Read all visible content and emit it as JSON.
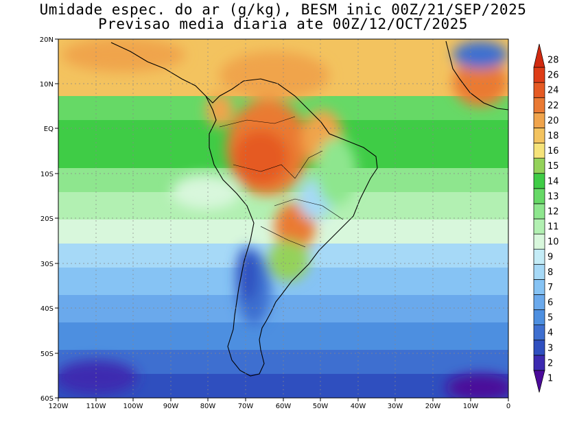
{
  "title_line1": "Umidade espec. do ar (g/kg), BESM inic 00Z/21/SEP/2025",
  "title_line2": "Previsao media diaria ate 00Z/12/OCT/2025",
  "lat_labels": [
    "20N",
    "10N",
    "EQ",
    "10S",
    "20S",
    "30S",
    "40S",
    "50S",
    "60S"
  ],
  "lon_labels": [
    "120W",
    "110W",
    "100W",
    "90W",
    "80W",
    "70W",
    "60W",
    "50W",
    "40W",
    "30W",
    "20W",
    "10W",
    "0"
  ],
  "colorbar": {
    "levels": [
      "1",
      "2",
      "3",
      "4",
      "5",
      "6",
      "7",
      "8",
      "9",
      "10",
      "11",
      "12",
      "13",
      "14",
      "15",
      "16",
      "18",
      "20",
      "22",
      "24",
      "26",
      "28"
    ],
    "colors": [
      "#4b0a9a",
      "#3c2ab0",
      "#2f4fbf",
      "#3e6fd0",
      "#4d8fe0",
      "#6aa9ec",
      "#86c3f4",
      "#a6d9f7",
      "#c4ecf7",
      "#d8f7dc",
      "#b2f0b2",
      "#8ee68e",
      "#66d966",
      "#3fcc46",
      "#94d25a",
      "#f6e37a",
      "#f3c35f",
      "#f0a44c",
      "#ea7a33",
      "#e55a23",
      "#de3d17",
      "#d02a10"
    ]
  },
  "colors": {
    "ocean_high_north": "#f0a44c",
    "ocean_tropical": "#66d966",
    "ocean_subtropical": "#c4ecf7",
    "ocean_midlat": "#6aa9ec",
    "ocean_southern": "#3c2ab0",
    "amazon": "#ea7a33",
    "andes": "#3e6fd0"
  }
}
